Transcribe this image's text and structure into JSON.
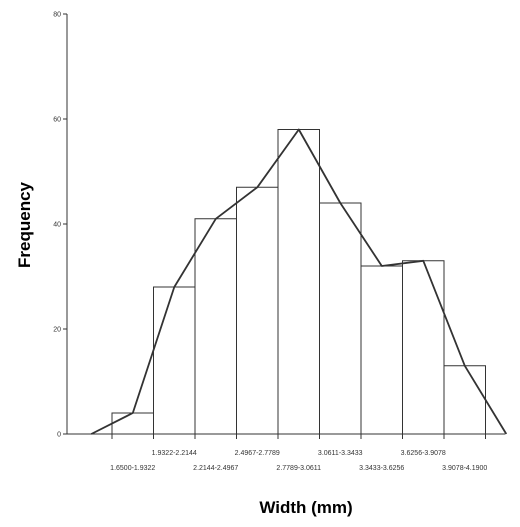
{
  "chart_data": {
    "type": "bar",
    "title": "",
    "xlabel": "Width (mm)",
    "ylabel": "Frequency",
    "ylim": [
      0,
      80
    ],
    "yticks": [
      0,
      20,
      40,
      60,
      80
    ],
    "categories": [
      "1.6500-1.9322",
      "1.9322-2.2144",
      "2.2144-2.4967",
      "2.4967-2.7789",
      "2.7789-3.0611",
      "3.0611-3.3433",
      "3.3433-3.6256",
      "3.6256-3.9078",
      "3.9078-4.1900"
    ],
    "values": [
      4,
      28,
      41,
      47,
      58,
      44,
      32,
      33,
      13
    ],
    "line_overlay": {
      "type": "line",
      "description": "frequency polygon",
      "values": [
        0,
        4,
        28,
        41,
        47,
        58,
        44,
        32,
        33,
        13,
        0
      ]
    },
    "grid": false,
    "legend": "none",
    "colors": {
      "bar_fill": "#ffffff",
      "bar_stroke": "#333333",
      "line": "#333333"
    }
  }
}
